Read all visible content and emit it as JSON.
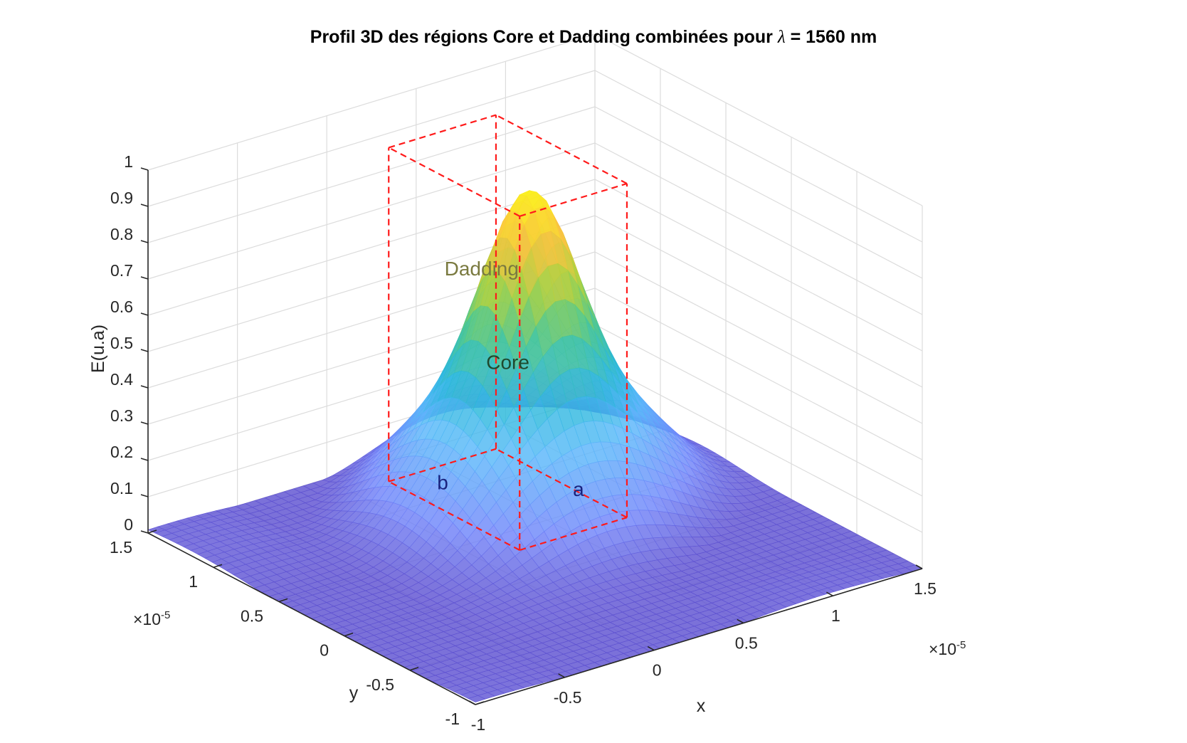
{
  "chart_data": {
    "type": "surface3d",
    "title_prefix": "Profil 3D des régions Core et Dadding combinées pour ",
    "title_lambda": "λ",
    "title_suffix": " = 1560 nm",
    "xlabel": "x",
    "ylabel": "y",
    "zlabel": "E(u.a)",
    "xlim": [
      -1.0,
      1.5
    ],
    "ylim": [
      -1.0,
      1.5
    ],
    "zlim": [
      0,
      1
    ],
    "x_ticks": [
      "-1",
      "-0.5",
      "0",
      "0.5",
      "1",
      "1.5"
    ],
    "y_ticks": [
      "-1",
      "-0.5",
      "0",
      "0.5",
      "1",
      "1.5"
    ],
    "z_ticks": [
      "0",
      "0.1",
      "0.2",
      "0.3",
      "0.4",
      "0.5",
      "0.6",
      "0.7",
      "0.8",
      "0.9",
      "1"
    ],
    "x_exponent": "×10",
    "x_exponent_power": "-5",
    "y_exponent": "×10",
    "y_exponent_power": "-5",
    "grid": true,
    "colormap": "parula",
    "peak": {
      "x": 0.55,
      "y": 0.7,
      "z": 0.86
    },
    "dadding_level": 0.28,
    "core_box": {
      "x": [
        0.2,
        0.8
      ],
      "y": [
        0.3,
        1.3
      ],
      "z": [
        0,
        0.92
      ]
    },
    "annotations": [
      {
        "label": "Dadding",
        "color": "#7a7a40"
      },
      {
        "label": "Core",
        "color": "#1f4a2f"
      },
      {
        "label": "a",
        "color": "#1a237e"
      },
      {
        "label": "b",
        "color": "#1a237e"
      }
    ],
    "box_color": "#ff1a1a"
  }
}
